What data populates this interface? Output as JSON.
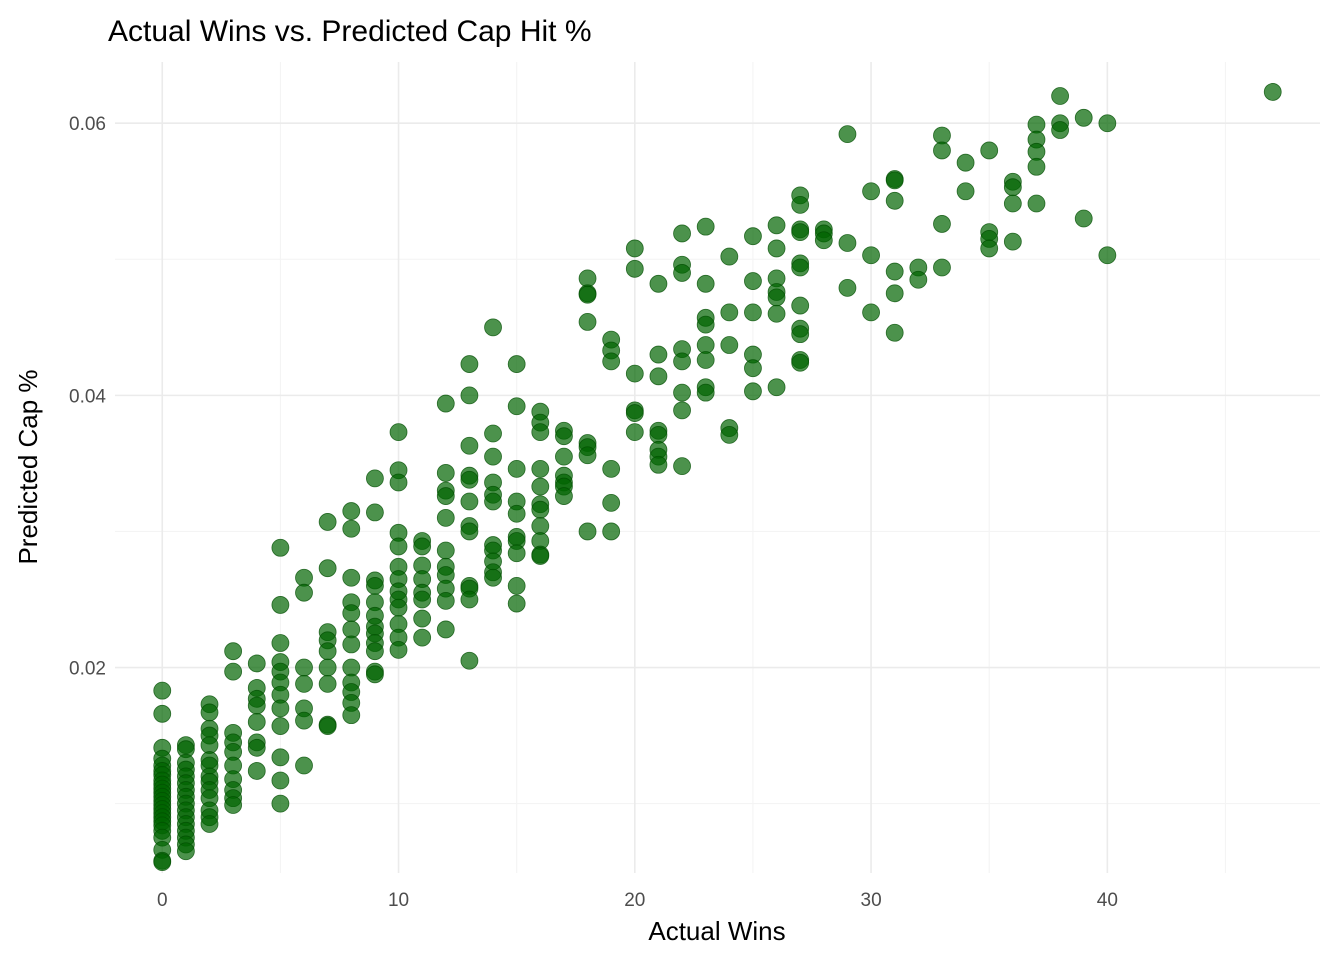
{
  "chart_data": {
    "type": "scatter",
    "title": "Actual Wins vs. Predicted Cap Hit %",
    "xlabel": "Actual Wins",
    "ylabel": "Predicted Cap %",
    "xlim": [
      -2,
      49
    ],
    "ylim": [
      0.0049,
      0.0645
    ],
    "x_ticks": [
      0,
      10,
      20,
      30,
      40
    ],
    "x_tick_labels": [
      "0",
      "10",
      "20",
      "30",
      "40"
    ],
    "y_ticks": [
      0.02,
      0.04,
      0.06
    ],
    "y_tick_labels": [
      "0.02",
      "0.04",
      "0.06"
    ],
    "grid": true,
    "legend": "none",
    "point_color": "#006400",
    "points": [
      [
        0,
        0.0183
      ],
      [
        0,
        0.0166
      ],
      [
        0,
        0.0141
      ],
      [
        0,
        0.0133
      ],
      [
        0,
        0.0128
      ],
      [
        0,
        0.0124
      ],
      [
        0,
        0.0121
      ],
      [
        0,
        0.0117
      ],
      [
        0,
        0.0114
      ],
      [
        0,
        0.0111
      ],
      [
        0,
        0.0108
      ],
      [
        0,
        0.0105
      ],
      [
        0,
        0.0102
      ],
      [
        0,
        0.0099
      ],
      [
        0,
        0.0096
      ],
      [
        0,
        0.0093
      ],
      [
        0,
        0.009
      ],
      [
        0,
        0.0087
      ],
      [
        0,
        0.0084
      ],
      [
        0,
        0.008
      ],
      [
        0,
        0.0075
      ],
      [
        0,
        0.0066
      ],
      [
        0,
        0.0058
      ],
      [
        0,
        0.0057
      ],
      [
        1,
        0.0143
      ],
      [
        1,
        0.014
      ],
      [
        1,
        0.013
      ],
      [
        1,
        0.0125
      ],
      [
        1,
        0.012
      ],
      [
        1,
        0.0115
      ],
      [
        1,
        0.011
      ],
      [
        1,
        0.0105
      ],
      [
        1,
        0.01
      ],
      [
        1,
        0.0095
      ],
      [
        1,
        0.009
      ],
      [
        1,
        0.0085
      ],
      [
        1,
        0.008
      ],
      [
        1,
        0.0075
      ],
      [
        1,
        0.007
      ],
      [
        1,
        0.0065
      ],
      [
        2,
        0.0173
      ],
      [
        2,
        0.0167
      ],
      [
        2,
        0.0155
      ],
      [
        2,
        0.015
      ],
      [
        2,
        0.0143
      ],
      [
        2,
        0.0132
      ],
      [
        2,
        0.0128
      ],
      [
        2,
        0.012
      ],
      [
        2,
        0.0116
      ],
      [
        2,
        0.011
      ],
      [
        2,
        0.0104
      ],
      [
        2,
        0.0095
      ],
      [
        2,
        0.009
      ],
      [
        2,
        0.0085
      ],
      [
        3,
        0.0212
      ],
      [
        3,
        0.0197
      ],
      [
        3,
        0.0152
      ],
      [
        3,
        0.0145
      ],
      [
        3,
        0.0138
      ],
      [
        3,
        0.0128
      ],
      [
        3,
        0.0118
      ],
      [
        3,
        0.011
      ],
      [
        3,
        0.0104
      ],
      [
        3,
        0.0099
      ],
      [
        4,
        0.0203
      ],
      [
        4,
        0.0185
      ],
      [
        4,
        0.0177
      ],
      [
        4,
        0.0172
      ],
      [
        4,
        0.016
      ],
      [
        4,
        0.0145
      ],
      [
        4,
        0.0141
      ],
      [
        4,
        0.0124
      ],
      [
        5,
        0.0288
      ],
      [
        5,
        0.0246
      ],
      [
        5,
        0.0218
      ],
      [
        5,
        0.0204
      ],
      [
        5,
        0.0197
      ],
      [
        5,
        0.0189
      ],
      [
        5,
        0.018
      ],
      [
        5,
        0.017
      ],
      [
        5,
        0.0157
      ],
      [
        5,
        0.0134
      ],
      [
        5,
        0.0117
      ],
      [
        5,
        0.01
      ],
      [
        6,
        0.0266
      ],
      [
        6,
        0.0255
      ],
      [
        6,
        0.02
      ],
      [
        6,
        0.0188
      ],
      [
        6,
        0.017
      ],
      [
        6,
        0.0161
      ],
      [
        6,
        0.0128
      ],
      [
        7,
        0.0307
      ],
      [
        7,
        0.0273
      ],
      [
        7,
        0.0226
      ],
      [
        7,
        0.022
      ],
      [
        7,
        0.0212
      ],
      [
        7,
        0.02
      ],
      [
        7,
        0.0188
      ],
      [
        7,
        0.0158
      ],
      [
        7,
        0.0157
      ],
      [
        8,
        0.0315
      ],
      [
        8,
        0.0302
      ],
      [
        8,
        0.0266
      ],
      [
        8,
        0.0248
      ],
      [
        8,
        0.024
      ],
      [
        8,
        0.0228
      ],
      [
        8,
        0.0217
      ],
      [
        8,
        0.02
      ],
      [
        8,
        0.0189
      ],
      [
        8,
        0.0182
      ],
      [
        8,
        0.0174
      ],
      [
        8,
        0.0165
      ],
      [
        9,
        0.0339
      ],
      [
        9,
        0.0314
      ],
      [
        9,
        0.0264
      ],
      [
        9,
        0.026
      ],
      [
        9,
        0.0248
      ],
      [
        9,
        0.0238
      ],
      [
        9,
        0.023
      ],
      [
        9,
        0.0225
      ],
      [
        9,
        0.0218
      ],
      [
        9,
        0.0212
      ],
      [
        9,
        0.0197
      ],
      [
        9,
        0.0195
      ],
      [
        10,
        0.0373
      ],
      [
        10,
        0.0345
      ],
      [
        10,
        0.0336
      ],
      [
        10,
        0.0299
      ],
      [
        10,
        0.0289
      ],
      [
        10,
        0.0274
      ],
      [
        10,
        0.0265
      ],
      [
        10,
        0.0256
      ],
      [
        10,
        0.025
      ],
      [
        10,
        0.0244
      ],
      [
        10,
        0.0232
      ],
      [
        10,
        0.0222
      ],
      [
        10,
        0.0213
      ],
      [
        11,
        0.0293
      ],
      [
        11,
        0.0289
      ],
      [
        11,
        0.0275
      ],
      [
        11,
        0.0265
      ],
      [
        11,
        0.0255
      ],
      [
        11,
        0.025
      ],
      [
        11,
        0.0236
      ],
      [
        11,
        0.0222
      ],
      [
        12,
        0.0394
      ],
      [
        12,
        0.0343
      ],
      [
        12,
        0.033
      ],
      [
        12,
        0.0326
      ],
      [
        12,
        0.031
      ],
      [
        12,
        0.0286
      ],
      [
        12,
        0.0274
      ],
      [
        12,
        0.0268
      ],
      [
        12,
        0.0258
      ],
      [
        12,
        0.0249
      ],
      [
        12,
        0.0228
      ],
      [
        13,
        0.0423
      ],
      [
        13,
        0.04
      ],
      [
        13,
        0.0363
      ],
      [
        13,
        0.0341
      ],
      [
        13,
        0.0338
      ],
      [
        13,
        0.0322
      ],
      [
        13,
        0.0304
      ],
      [
        13,
        0.03
      ],
      [
        13,
        0.026
      ],
      [
        13,
        0.0258
      ],
      [
        13,
        0.025
      ],
      [
        13,
        0.0205
      ],
      [
        14,
        0.045
      ],
      [
        14,
        0.0372
      ],
      [
        14,
        0.0355
      ],
      [
        14,
        0.0336
      ],
      [
        14,
        0.0327
      ],
      [
        14,
        0.0322
      ],
      [
        14,
        0.029
      ],
      [
        14,
        0.0286
      ],
      [
        14,
        0.0278
      ],
      [
        14,
        0.027
      ],
      [
        14,
        0.0266
      ],
      [
        15,
        0.0423
      ],
      [
        15,
        0.0392
      ],
      [
        15,
        0.0346
      ],
      [
        15,
        0.0322
      ],
      [
        15,
        0.0313
      ],
      [
        15,
        0.0296
      ],
      [
        15,
        0.0293
      ],
      [
        15,
        0.0284
      ],
      [
        15,
        0.026
      ],
      [
        15,
        0.0247
      ],
      [
        16,
        0.0388
      ],
      [
        16,
        0.038
      ],
      [
        16,
        0.0373
      ],
      [
        16,
        0.0346
      ],
      [
        16,
        0.0333
      ],
      [
        16,
        0.032
      ],
      [
        16,
        0.0316
      ],
      [
        16,
        0.0304
      ],
      [
        16,
        0.0293
      ],
      [
        16,
        0.0283
      ],
      [
        16,
        0.0282
      ],
      [
        17,
        0.0374
      ],
      [
        17,
        0.037
      ],
      [
        17,
        0.0355
      ],
      [
        17,
        0.0341
      ],
      [
        17,
        0.0336
      ],
      [
        17,
        0.0333
      ],
      [
        17,
        0.0326
      ],
      [
        18,
        0.0486
      ],
      [
        18,
        0.0475
      ],
      [
        18,
        0.0474
      ],
      [
        18,
        0.0454
      ],
      [
        18,
        0.0365
      ],
      [
        18,
        0.0362
      ],
      [
        18,
        0.0356
      ],
      [
        18,
        0.03
      ],
      [
        19,
        0.0441
      ],
      [
        19,
        0.0433
      ],
      [
        19,
        0.0425
      ],
      [
        19,
        0.0346
      ],
      [
        19,
        0.0321
      ],
      [
        19,
        0.03
      ],
      [
        20,
        0.0508
      ],
      [
        20,
        0.0493
      ],
      [
        20,
        0.0416
      ],
      [
        20,
        0.0389
      ],
      [
        20,
        0.0387
      ],
      [
        20,
        0.0373
      ],
      [
        21,
        0.0482
      ],
      [
        21,
        0.043
      ],
      [
        21,
        0.0414
      ],
      [
        21,
        0.0374
      ],
      [
        21,
        0.0371
      ],
      [
        21,
        0.036
      ],
      [
        21,
        0.0355
      ],
      [
        21,
        0.0349
      ],
      [
        22,
        0.0519
      ],
      [
        22,
        0.0496
      ],
      [
        22,
        0.049
      ],
      [
        22,
        0.0434
      ],
      [
        22,
        0.0425
      ],
      [
        22,
        0.0402
      ],
      [
        22,
        0.0389
      ],
      [
        22,
        0.0348
      ],
      [
        23,
        0.0524
      ],
      [
        23,
        0.0482
      ],
      [
        23,
        0.0457
      ],
      [
        23,
        0.0452
      ],
      [
        23,
        0.0437
      ],
      [
        23,
        0.0426
      ],
      [
        23,
        0.0406
      ],
      [
        23,
        0.0402
      ],
      [
        24,
        0.0502
      ],
      [
        24,
        0.0461
      ],
      [
        24,
        0.0437
      ],
      [
        24,
        0.0376
      ],
      [
        24,
        0.0371
      ],
      [
        25,
        0.0517
      ],
      [
        25,
        0.0484
      ],
      [
        25,
        0.0461
      ],
      [
        25,
        0.043
      ],
      [
        25,
        0.042
      ],
      [
        25,
        0.0403
      ],
      [
        26,
        0.0525
      ],
      [
        26,
        0.0508
      ],
      [
        26,
        0.0486
      ],
      [
        26,
        0.0476
      ],
      [
        26,
        0.0472
      ],
      [
        26,
        0.046
      ],
      [
        26,
        0.0406
      ],
      [
        27,
        0.0547
      ],
      [
        27,
        0.054
      ],
      [
        27,
        0.0522
      ],
      [
        27,
        0.052
      ],
      [
        27,
        0.0497
      ],
      [
        27,
        0.0494
      ],
      [
        27,
        0.0466
      ],
      [
        27,
        0.0449
      ],
      [
        27,
        0.0445
      ],
      [
        27,
        0.0426
      ],
      [
        27,
        0.0424
      ],
      [
        28,
        0.0522
      ],
      [
        28,
        0.0519
      ],
      [
        28,
        0.0514
      ],
      [
        29,
        0.0592
      ],
      [
        29,
        0.0512
      ],
      [
        29,
        0.0479
      ],
      [
        30,
        0.055
      ],
      [
        30,
        0.0503
      ],
      [
        30,
        0.0461
      ],
      [
        31,
        0.0559
      ],
      [
        31,
        0.0558
      ],
      [
        31,
        0.0543
      ],
      [
        31,
        0.0491
      ],
      [
        31,
        0.0475
      ],
      [
        31,
        0.0446
      ],
      [
        32,
        0.0494
      ],
      [
        32,
        0.0485
      ],
      [
        33,
        0.0591
      ],
      [
        33,
        0.058
      ],
      [
        33,
        0.0526
      ],
      [
        33,
        0.0494
      ],
      [
        34,
        0.0571
      ],
      [
        34,
        0.055
      ],
      [
        35,
        0.058
      ],
      [
        35,
        0.052
      ],
      [
        35,
        0.0515
      ],
      [
        35,
        0.0508
      ],
      [
        36,
        0.0557
      ],
      [
        36,
        0.0553
      ],
      [
        36,
        0.0541
      ],
      [
        36,
        0.0513
      ],
      [
        37,
        0.0599
      ],
      [
        37,
        0.0588
      ],
      [
        37,
        0.0579
      ],
      [
        37,
        0.0568
      ],
      [
        37,
        0.0541
      ],
      [
        38,
        0.062
      ],
      [
        38,
        0.06
      ],
      [
        38,
        0.0595
      ],
      [
        39,
        0.0604
      ],
      [
        39,
        0.053
      ],
      [
        40,
        0.06
      ],
      [
        40,
        0.0503
      ],
      [
        47,
        0.0623
      ]
    ]
  }
}
